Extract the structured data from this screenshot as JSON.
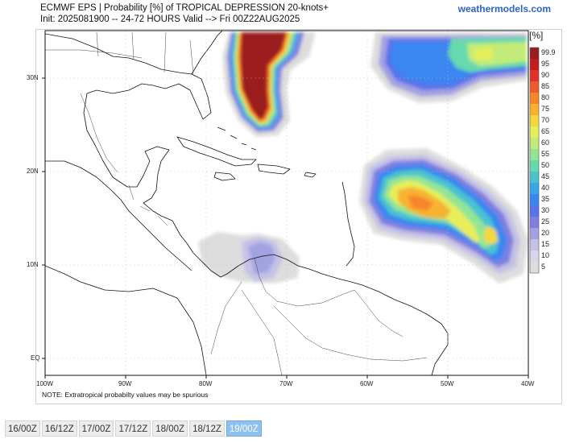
{
  "header": {
    "title_line1": "ECMWF EPS | Probability [%] of TROPICAL DEPRESSION 20-knots+",
    "title_line2": "Init: 2025081900 -- 24-72 HOURS Valid --> Fri 00Z22AUG2025",
    "brand": "weathermodels.com"
  },
  "map": {
    "lat_labels": [
      "30N",
      "20N",
      "10N",
      "EQ"
    ],
    "lon_labels": [
      "100W",
      "90W",
      "80W",
      "70W",
      "60W",
      "50W",
      "40W"
    ],
    "note": "NOTE: Extratropical probabilty values may be spurious"
  },
  "colorbar": {
    "title": "[%]",
    "labels": [
      "99.9",
      "95",
      "90",
      "85",
      "80",
      "75",
      "70",
      "65",
      "60",
      "55",
      "50",
      "45",
      "40",
      "35",
      "30",
      "25",
      "20",
      "15",
      "10",
      "5"
    ],
    "colors": [
      "#9a1d1d",
      "#c21d1d",
      "#e3312a",
      "#ef5a2a",
      "#f5862a",
      "#f8b230",
      "#f6d73a",
      "#e7ee5a",
      "#c2ec77",
      "#93e594",
      "#66d9ad",
      "#4ac3cf",
      "#3aa6e8",
      "#3a86f0",
      "#5a73ea",
      "#7f7fe0",
      "#a3a2e1",
      "#c4c1e6",
      "#d9d5ea",
      "#dddddd"
    ]
  },
  "timesteps": {
    "items": [
      "16/00Z",
      "16/12Z",
      "17/00Z",
      "17/12Z",
      "18/00Z",
      "18/12Z",
      "19/00Z"
    ],
    "active": "19/00Z"
  }
}
